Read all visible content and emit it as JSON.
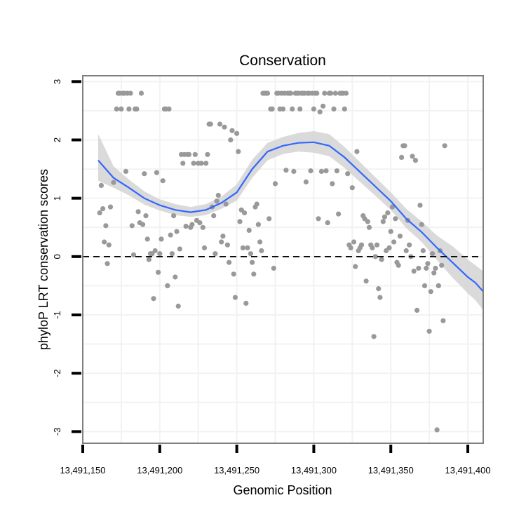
{
  "chart_data": {
    "type": "scatter",
    "title": "Conservation",
    "xlabel": "Genomic Position",
    "ylabel": "phyloP LRT conservation scores",
    "xlim": [
      13491150,
      13491410
    ],
    "ylim": [
      -3.2,
      3.1
    ],
    "x_ticks": [
      13491150,
      13491200,
      13491250,
      13491300,
      13491350,
      13491400
    ],
    "x_tick_labels": [
      "13,491,150",
      "13,491,200",
      "13,491,250",
      "13,491,300",
      "13,491,350",
      "13,491,400"
    ],
    "y_ticks": [
      -3,
      -2,
      -1,
      0,
      1,
      2,
      3
    ],
    "y_tick_labels": [
      "-3",
      "-2",
      "-1",
      "0",
      "1",
      "2",
      "3"
    ],
    "reference_line": {
      "y": 0,
      "style": "dashed"
    },
    "grid": true,
    "colors": {
      "points": "#999999",
      "smooth_line": "#3366ff",
      "confidence_band": "#d3d3d3",
      "reference_line": "#000000",
      "panel_border": "#7f7f7f",
      "grid": "#f2f2f2"
    },
    "points": [
      [
        13491161,
        0.75
      ],
      [
        13491162,
        1.22
      ],
      [
        13491163,
        0.82
      ],
      [
        13491164,
        0.25
      ],
      [
        13491165,
        0.53
      ],
      [
        13491166,
        -0.12
      ],
      [
        13491167,
        0.2
      ],
      [
        13491168,
        0.85
      ],
      [
        13491170,
        1.27
      ],
      [
        13491172,
        2.53
      ],
      [
        13491173,
        2.8
      ],
      [
        13491174,
        2.8
      ],
      [
        13491175,
        2.53
      ],
      [
        13491176,
        2.8
      ],
      [
        13491177,
        2.8
      ],
      [
        13491178,
        1.46
      ],
      [
        13491179,
        2.8
      ],
      [
        13491180,
        2.53
      ],
      [
        13491181,
        2.8
      ],
      [
        13491182,
        0.53
      ],
      [
        13491183,
        0.03
      ],
      [
        13491184,
        2.53
      ],
      [
        13491185,
        2.53
      ],
      [
        13491186,
        0.77
      ],
      [
        13491187,
        0.58
      ],
      [
        13491188,
        2.8
      ],
      [
        13491189,
        0.55
      ],
      [
        13491190,
        1.42
      ],
      [
        13491191,
        0.7
      ],
      [
        13491192,
        0.3
      ],
      [
        13491193,
        -0.05
      ],
      [
        13491194,
        0.05
      ],
      [
        13491195,
        0.05
      ],
      [
        13491196,
        -0.72
      ],
      [
        13491197,
        0.1
      ],
      [
        13491198,
        1.44
      ],
      [
        13491199,
        -0.27
      ],
      [
        13491200,
        0.05
      ],
      [
        13491201,
        0.3
      ],
      [
        13491202,
        1.3
      ],
      [
        13491203,
        2.53
      ],
      [
        13491204,
        2.53
      ],
      [
        13491205,
        -0.5
      ],
      [
        13491206,
        2.53
      ],
      [
        13491207,
        0.37
      ],
      [
        13491208,
        0.05
      ],
      [
        13491209,
        0.7
      ],
      [
        13491210,
        -0.35
      ],
      [
        13491211,
        0.43
      ],
      [
        13491212,
        -0.85
      ],
      [
        13491213,
        0.13
      ],
      [
        13491214,
        1.75
      ],
      [
        13491215,
        1.6
      ],
      [
        13491216,
        1.75
      ],
      [
        13491217,
        0.52
      ],
      [
        13491218,
        1.75
      ],
      [
        13491219,
        1.75
      ],
      [
        13491220,
        0.5
      ],
      [
        13491221,
        0.55
      ],
      [
        13491222,
        1.6
      ],
      [
        13491223,
        1.75
      ],
      [
        13491224,
        0.62
      ],
      [
        13491225,
        1.6
      ],
      [
        13491226,
        0.58
      ],
      [
        13491227,
        1.6
      ],
      [
        13491228,
        0.5
      ],
      [
        13491229,
        0.15
      ],
      [
        13491230,
        1.6
      ],
      [
        13491231,
        1.75
      ],
      [
        13491232,
        2.27
      ],
      [
        13491233,
        2.27
      ],
      [
        13491234,
        0.85
      ],
      [
        13491235,
        0.7
      ],
      [
        13491236,
        0.05
      ],
      [
        13491237,
        0.95
      ],
      [
        13491238,
        1.05
      ],
      [
        13491239,
        2.27
      ],
      [
        13491240,
        0.25
      ],
      [
        13491241,
        0.35
      ],
      [
        13491242,
        2.22
      ],
      [
        13491243,
        0.9
      ],
      [
        13491244,
        0.2
      ],
      [
        13491245,
        -0.1
      ],
      [
        13491246,
        2.0
      ],
      [
        13491247,
        2.16
      ],
      [
        13491248,
        -0.3
      ],
      [
        13491249,
        -0.7
      ],
      [
        13491250,
        2.11
      ],
      [
        13491251,
        1.8
      ],
      [
        13491252,
        0.6
      ],
      [
        13491253,
        0.8
      ],
      [
        13491254,
        0.15
      ],
      [
        13491255,
        0.75
      ],
      [
        13491256,
        -0.8
      ],
      [
        13491257,
        0.15
      ],
      [
        13491258,
        0.45
      ],
      [
        13491259,
        0.05
      ],
      [
        13491260,
        -0.1
      ],
      [
        13491261,
        -0.3
      ],
      [
        13491262,
        0.85
      ],
      [
        13491263,
        0.9
      ],
      [
        13491264,
        0.55
      ],
      [
        13491265,
        0.25
      ],
      [
        13491266,
        0.1
      ],
      [
        13491267,
        2.8
      ],
      [
        13491268,
        2.8
      ],
      [
        13491269,
        2.8
      ],
      [
        13491270,
        2.8
      ],
      [
        13491271,
        0.65
      ],
      [
        13491272,
        2.53
      ],
      [
        13491273,
        2.53
      ],
      [
        13491274,
        -0.2
      ],
      [
        13491275,
        1.25
      ],
      [
        13491276,
        2.8
      ],
      [
        13491277,
        2.8
      ],
      [
        13491278,
        2.53
      ],
      [
        13491279,
        2.8
      ],
      [
        13491280,
        2.53
      ],
      [
        13491281,
        2.8
      ],
      [
        13491282,
        1.48
      ],
      [
        13491283,
        2.8
      ],
      [
        13491284,
        2.8
      ],
      [
        13491285,
        2.8
      ],
      [
        13491286,
        2.53
      ],
      [
        13491287,
        1.46
      ],
      [
        13491288,
        2.8
      ],
      [
        13491289,
        2.8
      ],
      [
        13491290,
        2.8
      ],
      [
        13491291,
        2.53
      ],
      [
        13491292,
        2.8
      ],
      [
        13491293,
        2.8
      ],
      [
        13491294,
        2.8
      ],
      [
        13491295,
        1.28
      ],
      [
        13491296,
        2.8
      ],
      [
        13491297,
        2.8
      ],
      [
        13491298,
        1.47
      ],
      [
        13491299,
        2.8
      ],
      [
        13491300,
        2.53
      ],
      [
        13491301,
        2.8
      ],
      [
        13491302,
        2.8
      ],
      [
        13491303,
        0.65
      ],
      [
        13491304,
        2.48
      ],
      [
        13491305,
        1.46
      ],
      [
        13491306,
        2.58
      ],
      [
        13491307,
        2.8
      ],
      [
        13491308,
        1.47
      ],
      [
        13491309,
        0.58
      ],
      [
        13491310,
        2.8
      ],
      [
        13491311,
        2.8
      ],
      [
        13491312,
        1.25
      ],
      [
        13491313,
        2.53
      ],
      [
        13491314,
        2.8
      ],
      [
        13491315,
        1.47
      ],
      [
        13491316,
        0.73
      ],
      [
        13491317,
        2.8
      ],
      [
        13491318,
        2.8
      ],
      [
        13491319,
        2.8
      ],
      [
        13491320,
        2.53
      ],
      [
        13491321,
        2.8
      ],
      [
        13491322,
        1.42
      ],
      [
        13491323,
        0.2
      ],
      [
        13491324,
        0.15
      ],
      [
        13491325,
        1.18
      ],
      [
        13491326,
        0.25
      ],
      [
        13491327,
        -0.17
      ],
      [
        13491328,
        1.8
      ],
      [
        13491329,
        0.1
      ],
      [
        13491330,
        0.15
      ],
      [
        13491331,
        0.2
      ],
      [
        13491332,
        0.7
      ],
      [
        13491333,
        0.65
      ],
      [
        13491334,
        -0.42
      ],
      [
        13491335,
        0.6
      ],
      [
        13491336,
        0.5
      ],
      [
        13491337,
        0.2
      ],
      [
        13491338,
        0.15
      ],
      [
        13491339,
        -1.37
      ],
      [
        13491340,
        0.0
      ],
      [
        13491341,
        0.2
      ],
      [
        13491342,
        -0.55
      ],
      [
        13491343,
        -0.7
      ],
      [
        13491344,
        -0.05
      ],
      [
        13491345,
        0.6
      ],
      [
        13491346,
        0.68
      ],
      [
        13491347,
        0.1
      ],
      [
        13491348,
        0.75
      ],
      [
        13491349,
        0.15
      ],
      [
        13491350,
        0.43
      ],
      [
        13491351,
        0.85
      ],
      [
        13491352,
        0.25
      ],
      [
        13491353,
        0.65
      ],
      [
        13491354,
        -0.1
      ],
      [
        13491355,
        -0.15
      ],
      [
        13491356,
        0.35
      ],
      [
        13491357,
        1.7
      ],
      [
        13491358,
        1.9
      ],
      [
        13491359,
        1.9
      ],
      [
        13491360,
        0.1
      ],
      [
        13491361,
        0.62
      ],
      [
        13491362,
        0.2
      ],
      [
        13491363,
        0.0
      ],
      [
        13491364,
        1.72
      ],
      [
        13491365,
        -0.25
      ],
      [
        13491366,
        1.65
      ],
      [
        13491367,
        -0.92
      ],
      [
        13491368,
        -0.2
      ],
      [
        13491369,
        0.88
      ],
      [
        13491370,
        0.55
      ],
      [
        13491371,
        0.1
      ],
      [
        13491372,
        -0.5
      ],
      [
        13491373,
        -0.2
      ],
      [
        13491374,
        -0.12
      ],
      [
        13491375,
        -1.28
      ],
      [
        13491376,
        -0.6
      ],
      [
        13491377,
        0.05
      ],
      [
        13491378,
        -0.28
      ],
      [
        13491379,
        -0.2
      ],
      [
        13491380,
        -2.97
      ],
      [
        13491381,
        -0.5
      ],
      [
        13491382,
        0.1
      ],
      [
        13491383,
        -0.15
      ],
      [
        13491384,
        -1.1
      ],
      [
        13491385,
        1.9
      ]
    ],
    "smooth": {
      "x": [
        13491160,
        13491170,
        13491180,
        13491190,
        13491200,
        13491210,
        13491220,
        13491230,
        13491240,
        13491250,
        13491260,
        13491270,
        13491280,
        13491290,
        13491300,
        13491310,
        13491320,
        13491330,
        13491340,
        13491350,
        13491360,
        13491370,
        13491380,
        13491390,
        13491400,
        13491405,
        13491410
      ],
      "y": [
        1.65,
        1.35,
        1.18,
        1.0,
        0.88,
        0.8,
        0.76,
        0.8,
        0.92,
        1.1,
        1.5,
        1.8,
        1.9,
        1.95,
        1.96,
        1.9,
        1.7,
        1.45,
        1.2,
        0.95,
        0.65,
        0.42,
        0.15,
        -0.1,
        -0.35,
        -0.45,
        -0.6
      ],
      "upper": [
        2.1,
        1.55,
        1.32,
        1.12,
        0.98,
        0.9,
        0.85,
        0.9,
        1.03,
        1.24,
        1.66,
        1.95,
        2.05,
        2.12,
        2.15,
        2.1,
        1.88,
        1.62,
        1.36,
        1.1,
        0.82,
        0.6,
        0.36,
        0.18,
        -0.05,
        -0.15,
        -0.25
      ],
      "lower": [
        1.3,
        1.18,
        1.05,
        0.89,
        0.79,
        0.71,
        0.68,
        0.71,
        0.82,
        0.96,
        1.35,
        1.65,
        1.76,
        1.8,
        1.78,
        1.72,
        1.52,
        1.28,
        1.04,
        0.8,
        0.49,
        0.25,
        -0.06,
        -0.36,
        -0.63,
        -0.75,
        -0.92
      ]
    }
  }
}
